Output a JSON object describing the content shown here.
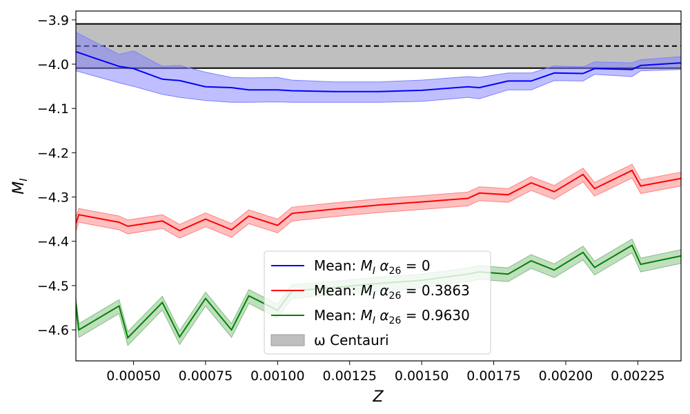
{
  "chart_data": {
    "type": "line",
    "title": "",
    "xlabel": "Z",
    "ylabel": "M",
    "ylabel_sub": "I",
    "xlim": [
      0.0003,
      0.0024
    ],
    "ylim": [
      -4.67,
      -3.88
    ],
    "xticks": [
      0.0005,
      0.00075,
      0.001,
      0.00125,
      0.0015,
      0.00175,
      0.002,
      0.00225
    ],
    "xtick_labels": [
      "0.00050",
      "0.00075",
      "0.00100",
      "0.00125",
      "0.00150",
      "0.00175",
      "0.00200",
      "0.00225"
    ],
    "yticks": [
      -3.9,
      -4.0,
      -4.1,
      -4.2,
      -4.3,
      -4.4,
      -4.5,
      -4.6
    ],
    "ytick_labels": [
      "−3.9",
      "−4.0",
      "−4.1",
      "−4.2",
      "−4.3",
      "−4.4",
      "−4.5",
      "−4.6"
    ],
    "grid": false,
    "legend_position": "lower-center",
    "reference_band": {
      "name": "ω Centauri",
      "lower": -4.009,
      "upper": -3.909,
      "center": -3.959,
      "color": "#bfbfbf"
    },
    "series": [
      {
        "name_prefix": "Mean: ",
        "name_math": "M",
        "name_sub": "I",
        "name_alpha": " α",
        "name_alpha_sub": "26",
        "name_value": " = 0",
        "color": "#0000ff",
        "band_color": "#7f7fff",
        "x": [
          0.0003,
          0.00045,
          0.0005,
          0.0006,
          0.00066,
          0.00075,
          0.00084,
          0.0009,
          0.001,
          0.00105,
          0.0012,
          0.00135,
          0.0015,
          0.00166,
          0.0017,
          0.0018,
          0.00188,
          0.00196,
          0.00206,
          0.0021,
          0.00223,
          0.00226,
          0.0024
        ],
        "mean": [
          -3.972,
          -4.005,
          -4.01,
          -4.034,
          -4.037,
          -4.051,
          -4.053,
          -4.058,
          -4.058,
          -4.06,
          -4.062,
          -4.062,
          -4.059,
          -4.051,
          -4.053,
          -4.038,
          -4.038,
          -4.02,
          -4.021,
          -4.01,
          -4.012,
          -4.003,
          -3.997
        ],
        "upper": [
          -3.928,
          -3.978,
          -3.97,
          -4.005,
          -4.003,
          -4.018,
          -4.03,
          -4.031,
          -4.03,
          -4.036,
          -4.04,
          -4.04,
          -4.036,
          -4.028,
          -4.03,
          -4.02,
          -4.02,
          -4.004,
          -4.006,
          -3.995,
          -3.997,
          -3.99,
          -3.983
        ],
        "lower": [
          -4.015,
          -4.042,
          -4.05,
          -4.068,
          -4.075,
          -4.082,
          -4.086,
          -4.086,
          -4.085,
          -4.086,
          -4.086,
          -4.086,
          -4.084,
          -4.075,
          -4.078,
          -4.058,
          -4.058,
          -4.037,
          -4.038,
          -4.023,
          -4.028,
          -4.015,
          -4.012
        ]
      },
      {
        "name_prefix": "Mean: ",
        "name_math": "M",
        "name_sub": "I",
        "name_alpha": " α",
        "name_alpha_sub": "26",
        "name_value": " = 0.3863",
        "color": "#ff0000",
        "band_color": "#ff7f7f",
        "x": [
          0.0003,
          0.00031,
          0.00045,
          0.00048,
          0.0006,
          0.00066,
          0.00075,
          0.00084,
          0.0009,
          0.001,
          0.00105,
          0.0012,
          0.00135,
          0.0015,
          0.00166,
          0.0017,
          0.0018,
          0.00188,
          0.00196,
          0.00206,
          0.0021,
          0.00223,
          0.00226,
          0.0024
        ],
        "mean": [
          -4.36,
          -4.34,
          -4.357,
          -4.366,
          -4.354,
          -4.376,
          -4.35,
          -4.374,
          -4.343,
          -4.364,
          -4.337,
          -4.327,
          -4.318,
          -4.311,
          -4.303,
          -4.291,
          -4.295,
          -4.268,
          -4.288,
          -4.249,
          -4.281,
          -4.24,
          -4.275,
          -4.258
        ]
      },
      {
        "name_prefix": "Mean: ",
        "name_math": "M",
        "name_sub": "I",
        "name_alpha": " α",
        "name_alpha_sub": "26",
        "name_value": " = 0.9630",
        "color": "#008000",
        "band_color": "#7fbf7f",
        "x": [
          0.0003,
          0.00031,
          0.00045,
          0.00048,
          0.0006,
          0.00066,
          0.00075,
          0.00084,
          0.0009,
          0.001,
          0.00105,
          0.0012,
          0.00135,
          0.0015,
          0.00166,
          0.0017,
          0.0018,
          0.00188,
          0.00196,
          0.00206,
          0.0021,
          0.00223,
          0.00226,
          0.0024
        ],
        "mean": [
          -4.54,
          -4.6,
          -4.546,
          -4.618,
          -4.538,
          -4.616,
          -4.529,
          -4.6,
          -4.523,
          -4.556,
          -4.512,
          -4.504,
          -4.495,
          -4.488,
          -4.474,
          -4.469,
          -4.474,
          -4.444,
          -4.465,
          -4.425,
          -4.459,
          -4.409,
          -4.452,
          -4.433
        ]
      }
    ]
  }
}
